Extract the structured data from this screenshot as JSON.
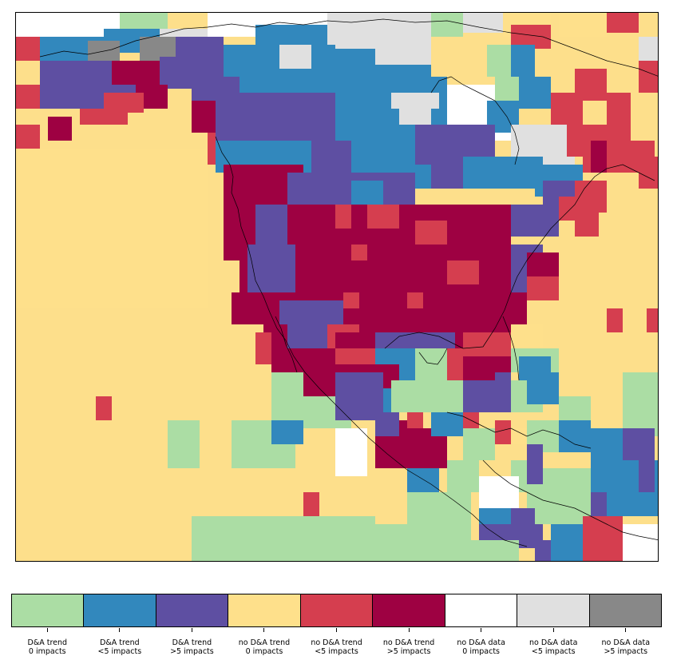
{
  "map": {
    "background_color": "#fddf8b",
    "coastline_color": "#000000",
    "category_colors": {
      "G": "#abdda4",
      "B": "#3288bd",
      "P": "#5e4fa2",
      "Y": "#fee08b",
      "R": "#d53e4f",
      "M": "#9e0142",
      "W": "#ffffff",
      "L": "#e0e0e0",
      "D": "#888888"
    }
  },
  "legend": {
    "items": [
      {
        "id": "da-trend-0",
        "line1": "D&A trend",
        "line2": "0 impacts",
        "color": "#abdda4"
      },
      {
        "id": "da-trend-lt5",
        "line1": "D&A trend",
        "line2": "<5 impacts",
        "color": "#3288bd"
      },
      {
        "id": "da-trend-gt5",
        "line1": "D&A trend",
        "line2": ">5 impacts",
        "color": "#5e4fa2"
      },
      {
        "id": "no-da-trend-0",
        "line1": "no D&A trend",
        "line2": "0 impacts",
        "color": "#fee08b"
      },
      {
        "id": "no-da-trend-lt5",
        "line1": "no D&A trend",
        "line2": "<5 impacts",
        "color": "#d53e4f"
      },
      {
        "id": "no-da-trend-gt5",
        "line1": "no D&A trend",
        "line2": ">5 impacts",
        "color": "#9e0142"
      },
      {
        "id": "no-da-data-0",
        "line1": "no D&A data",
        "line2": "0 impacts",
        "color": "#ffffff"
      },
      {
        "id": "no-da-data-lt5",
        "line1": "no D&A data",
        "line2": "<5 impacts",
        "color": "#e0e0e0"
      },
      {
        "id": "no-da-data-gt5",
        "line1": "no D&A data",
        "line2": ">5 impacts",
        "color": "#888888"
      }
    ]
  }
}
